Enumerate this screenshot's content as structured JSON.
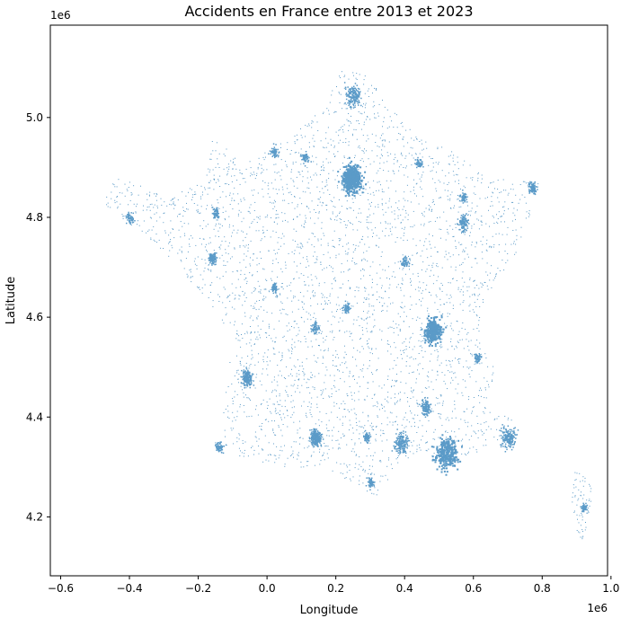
{
  "chart_data": {
    "type": "scatter",
    "title": "Accidents en France entre 2013 et 2023",
    "xlabel": "Longitude",
    "ylabel": "Latitude",
    "x_offset_label": "1e6",
    "y_offset_label": "1e6",
    "xlim": [
      -0.63,
      0.99
    ],
    "ylim": [
      4.082,
      5.185
    ],
    "x_ticks": [
      -0.6,
      -0.4,
      -0.2,
      0.0,
      0.2,
      0.4,
      0.6,
      0.8,
      1.0
    ],
    "x_tick_labels": [
      "−0.6",
      "−0.4",
      "−0.2",
      "0.0",
      "0.2",
      "0.4",
      "0.6",
      "0.8",
      "1.0"
    ],
    "y_ticks": [
      4.2,
      4.4,
      4.6,
      4.8,
      5.0
    ],
    "y_tick_labels": [
      "4.2",
      "4.4",
      "4.6",
      "4.8",
      "5.0"
    ],
    "grid": false,
    "point_color": "#5b9bc8",
    "axes_color": "#000000",
    "clusters": [
      {
        "x": 0.245,
        "y": 4.88,
        "r": 0.05,
        "w": 9
      },
      {
        "x": 0.48,
        "y": 4.575,
        "r": 0.045,
        "w": 6
      },
      {
        "x": 0.52,
        "y": 4.33,
        "r": 0.06,
        "w": 5
      },
      {
        "x": 0.14,
        "y": 4.36,
        "r": 0.03,
        "w": 4
      },
      {
        "x": -0.06,
        "y": 4.48,
        "r": 0.03,
        "w": 3
      },
      {
        "x": 0.7,
        "y": 4.36,
        "r": 0.04,
        "w": 3
      },
      {
        "x": 0.39,
        "y": 4.35,
        "r": 0.04,
        "w": 3
      },
      {
        "x": 0.46,
        "y": 4.42,
        "r": 0.03,
        "w": 2
      },
      {
        "x": 0.25,
        "y": 5.045,
        "r": 0.04,
        "w": 3
      },
      {
        "x": 0.57,
        "y": 4.79,
        "r": 0.03,
        "w": 2
      },
      {
        "x": 0.77,
        "y": 4.86,
        "r": 0.02,
        "w": 2
      },
      {
        "x": -0.16,
        "y": 4.72,
        "r": 0.02,
        "w": 2
      },
      {
        "x": -0.15,
        "y": 4.81,
        "r": 0.02,
        "w": 1
      },
      {
        "x": -0.4,
        "y": 4.8,
        "r": 0.02,
        "w": 1
      },
      {
        "x": 0.02,
        "y": 4.66,
        "r": 0.02,
        "w": 1
      },
      {
        "x": 0.14,
        "y": 4.58,
        "r": 0.02,
        "w": 1
      },
      {
        "x": 0.02,
        "y": 4.93,
        "r": 0.025,
        "w": 1
      },
      {
        "x": 0.11,
        "y": 4.92,
        "r": 0.02,
        "w": 1
      },
      {
        "x": 0.44,
        "y": 4.91,
        "r": 0.02,
        "w": 1
      },
      {
        "x": 0.57,
        "y": 4.84,
        "r": 0.02,
        "w": 1
      },
      {
        "x": 0.23,
        "y": 4.62,
        "r": 0.02,
        "w": 1
      },
      {
        "x": 0.29,
        "y": 4.36,
        "r": 0.02,
        "w": 1
      },
      {
        "x": 0.61,
        "y": 4.52,
        "r": 0.02,
        "w": 1
      },
      {
        "x": 0.4,
        "y": 4.71,
        "r": 0.02,
        "w": 1
      },
      {
        "x": 0.3,
        "y": 4.27,
        "r": 0.02,
        "w": 1
      },
      {
        "x": -0.14,
        "y": 4.34,
        "r": 0.02,
        "w": 1
      },
      {
        "x": 0.92,
        "y": 4.22,
        "r": 0.015,
        "w": 1
      }
    ],
    "outline": [
      [
        0.2,
        5.1
      ],
      [
        0.3,
        5.085
      ],
      [
        0.36,
        5.02
      ],
      [
        0.44,
        4.96
      ],
      [
        0.53,
        4.935
      ],
      [
        0.65,
        4.88
      ],
      [
        0.78,
        4.87
      ],
      [
        0.8,
        4.9
      ],
      [
        0.76,
        4.8
      ],
      [
        0.72,
        4.72
      ],
      [
        0.63,
        4.64
      ],
      [
        0.62,
        4.55
      ],
      [
        0.67,
        4.5
      ],
      [
        0.64,
        4.42
      ],
      [
        0.74,
        4.39
      ],
      [
        0.66,
        4.35
      ],
      [
        0.56,
        4.31
      ],
      [
        0.45,
        4.32
      ],
      [
        0.37,
        4.3
      ],
      [
        0.32,
        4.24
      ],
      [
        0.27,
        4.26
      ],
      [
        0.16,
        4.3
      ],
      [
        0.05,
        4.3
      ],
      [
        -0.16,
        4.33
      ],
      [
        -0.13,
        4.4
      ],
      [
        -0.1,
        4.56
      ],
      [
        -0.18,
        4.64
      ],
      [
        -0.3,
        4.73
      ],
      [
        -0.48,
        4.83
      ],
      [
        -0.44,
        4.88
      ],
      [
        -0.3,
        4.85
      ],
      [
        -0.18,
        4.87
      ],
      [
        -0.16,
        4.96
      ],
      [
        -0.06,
        4.91
      ],
      [
        0.08,
        4.97
      ],
      [
        0.18,
        5.03
      ]
    ],
    "corsica": [
      [
        0.895,
        4.3
      ],
      [
        0.93,
        4.28
      ],
      [
        0.945,
        4.25
      ],
      [
        0.935,
        4.2
      ],
      [
        0.92,
        4.14
      ],
      [
        0.895,
        4.18
      ],
      [
        0.885,
        4.23
      ]
    ],
    "coarse_points": 3500
  }
}
